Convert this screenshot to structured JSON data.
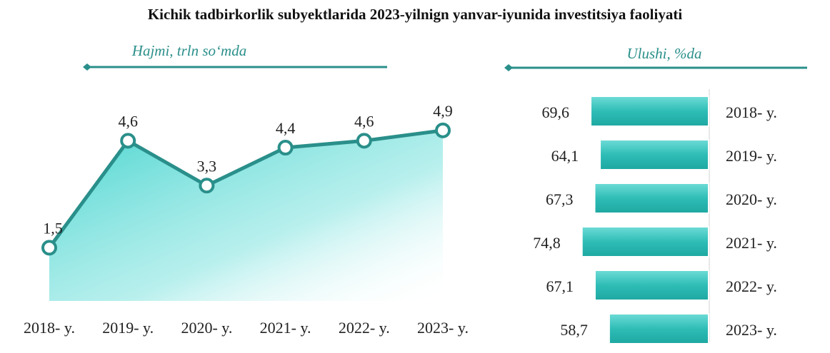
{
  "title": "Kichik tadbirkorlik subyektlarida 2023-yilnign yanvar-iyunida investitsiya faoliyati",
  "colors": {
    "accent": "#2a8f8a",
    "bar": "#2ebdb6",
    "area": "#4fd5d0",
    "text": "#222222"
  },
  "chart_data": [
    {
      "type": "area",
      "title": "Hajmi, trln so‘mda",
      "categories": [
        "2018- y.",
        "2019- y.",
        "2020- y.",
        "2021- y.",
        "2022- y.",
        "2023- y."
      ],
      "series": [
        {
          "values": [
            1.5,
            4.6,
            3.3,
            4.4,
            4.6,
            4.9
          ]
        }
      ],
      "value_labels": [
        "1,5",
        "4,6",
        "3,3",
        "4,4",
        "4,6",
        "4,9"
      ],
      "ylim": [
        0,
        6.5
      ]
    },
    {
      "type": "bar",
      "orientation": "horizontal",
      "title": "Ulushi, %da",
      "categories": [
        "2018- y.",
        "2019- y.",
        "2020- y.",
        "2021- y.",
        "2022- y.",
        "2023- y."
      ],
      "values": [
        69.6,
        64.1,
        67.3,
        74.8,
        67.1,
        58.7
      ],
      "value_labels": [
        "69,6",
        "64,1",
        "67,3",
        "74,8",
        "67,1",
        "58,7"
      ]
    }
  ]
}
